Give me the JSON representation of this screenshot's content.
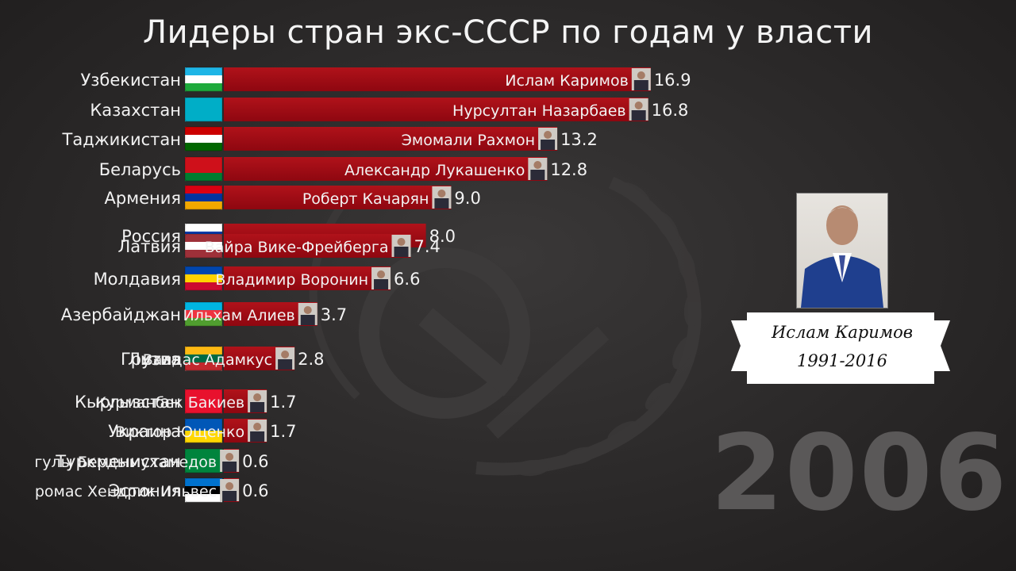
{
  "title": "Лидеры стран экс-СССР по годам у власти",
  "year": "2006",
  "featured": {
    "name": "Ислам Каримов",
    "years": "1991-2016"
  },
  "colors": {
    "bar": "#8e0710",
    "bar_top": "#b0121a",
    "label": "#f2f2f2",
    "hammer_sickle": "#3e3c3c"
  },
  "chart_data": {
    "type": "bar",
    "orientation": "horizontal",
    "title": "Лидеры стран экс-СССР по годам у власти",
    "xlim": [
      0,
      17
    ],
    "grid": false,
    "rows": [
      {
        "country": "Узбекистан",
        "leader": "Ислам  Каримов",
        "value": 16.9,
        "value_label": "16.9",
        "flag": [
          "#1eb5e6",
          "#ffffff",
          "#1eaa3c"
        ]
      },
      {
        "country": "Казахстан",
        "leader": "Нурсултан  Назарбаев",
        "value": 16.8,
        "value_label": "16.8",
        "flag": [
          "#00aec7"
        ]
      },
      {
        "country": "Таджикистан",
        "leader": "Эмомали Рахмон",
        "value": 13.2,
        "value_label": "13.2",
        "flag": [
          "#cc0000",
          "#ffffff",
          "#006600"
        ]
      },
      {
        "country": "Беларусь",
        "leader": "Александр  Лукашенко",
        "value": 12.8,
        "value_label": "12.8",
        "flag": [
          "#cf101a",
          "#cf101a",
          "#007c30"
        ]
      },
      {
        "country": "Армения",
        "leader": "Роберт Качарян",
        "value": 9.0,
        "value_label": "9.0",
        "flag": [
          "#d90012",
          "#0033a0",
          "#f2a800"
        ]
      },
      {
        "country": "Россия",
        "leader": "",
        "value": 8.0,
        "value_label": "8.0",
        "flag": [
          "#ffffff",
          "#0039a6",
          "#d52b1e"
        ]
      },
      {
        "country": "Латвия",
        "leader": "Вайра Вике-Фрейберга",
        "value": 7.4,
        "value_label": "7.4",
        "flag": [
          "#9e3039",
          "#ffffff",
          "#9e3039"
        ]
      },
      {
        "country": "Молдавия",
        "leader": "Владимир Воронин",
        "value": 6.6,
        "value_label": "6.6",
        "flag": [
          "#0046ae",
          "#ffd200",
          "#cc092f"
        ]
      },
      {
        "country": "Азербайджан",
        "leader": "Ильхам Алиев",
        "value": 3.7,
        "value_label": "3.7",
        "flag": [
          "#00b5e2",
          "#ef3340",
          "#509e2f"
        ]
      },
      {
        "country": "Грузия",
        "leader": "",
        "value": 2.8,
        "value_label": "",
        "flag": [
          "#ffffff",
          "#ff0000",
          "#ffffff"
        ]
      },
      {
        "country": "Литва",
        "leader": "Валдас Адамкус",
        "value": 2.8,
        "value_label": "2.8",
        "flag": [
          "#fdb913",
          "#006a44",
          "#c1272d"
        ]
      },
      {
        "country": "Кыргызстан",
        "leader": "Курманбек Бакиев",
        "value": 1.7,
        "value_label": "1.7",
        "flag": [
          "#e8112d"
        ]
      },
      {
        "country": "Украина",
        "leader": "Виктор Ющенко",
        "value": 1.7,
        "value_label": "1.7",
        "flag": [
          "#0057b7",
          "#ffd700"
        ]
      },
      {
        "country": "Туркменистан",
        "leader": "гулы Бердымухамедов",
        "value": 0.6,
        "value_label": "0.6",
        "flag": [
          "#00843d"
        ]
      },
      {
        "country": "Эстония",
        "leader": "ромас Хендрик Ильвес",
        "value": 0.6,
        "value_label": "0.6",
        "flag": [
          "#0072ce",
          "#000000",
          "#ffffff"
        ]
      }
    ]
  }
}
